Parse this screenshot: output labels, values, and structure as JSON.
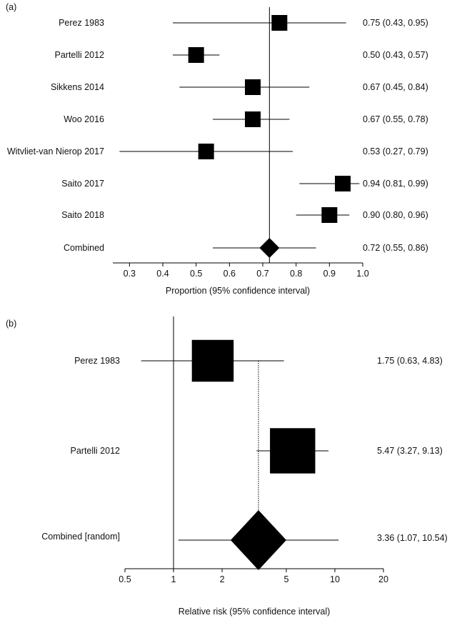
{
  "chart_data": [
    {
      "type": "forest",
      "panel_label": "(a)",
      "xlabel": "Proportion (95% confidence interval)",
      "xlim": [
        0.25,
        1.0
      ],
      "xticks": [
        "0.3",
        "0.4",
        "0.5",
        "0.6",
        "0.7",
        "0.8",
        "0.9",
        "1.0"
      ],
      "reference_line": 0.72,
      "studies": [
        {
          "name": "Perez 1983",
          "est": 0.75,
          "lo": 0.43,
          "hi": 0.95,
          "ci_text": "0.75 (0.43, 0.95)"
        },
        {
          "name": "Partelli 2012",
          "est": 0.5,
          "lo": 0.43,
          "hi": 0.57,
          "ci_text": "0.50 (0.43, 0.57)"
        },
        {
          "name": "Sikkens 2014",
          "est": 0.67,
          "lo": 0.45,
          "hi": 0.84,
          "ci_text": "0.67 (0.45, 0.84)"
        },
        {
          "name": "Woo 2016",
          "est": 0.67,
          "lo": 0.55,
          "hi": 0.78,
          "ci_text": "0.67 (0.55, 0.78)"
        },
        {
          "name": "Witvliet-van Nierop 2017",
          "est": 0.53,
          "lo": 0.27,
          "hi": 0.79,
          "ci_text": "0.53 (0.27, 0.79)"
        },
        {
          "name": "Saito 2017",
          "est": 0.94,
          "lo": 0.81,
          "hi": 0.99,
          "ci_text": "0.94 (0.81, 0.99)"
        },
        {
          "name": "Saito 2018",
          "est": 0.9,
          "lo": 0.8,
          "hi": 0.96,
          "ci_text": "0.90 (0.80, 0.96)"
        }
      ],
      "combined": {
        "name": "Combined",
        "est": 0.72,
        "lo": 0.55,
        "hi": 0.86,
        "ci_text": "0.72 (0.55, 0.86)"
      }
    },
    {
      "type": "forest",
      "panel_label": "(b)",
      "xlabel": "Relative risk (95% confidence interval)",
      "xscale": "log",
      "xlim": [
        0.5,
        20
      ],
      "xticks": [
        "0.5",
        "1",
        "2",
        "5",
        "10",
        "20"
      ],
      "null_line": 1,
      "reference_line": 3.36,
      "studies": [
        {
          "name": "Perez 1983",
          "est": 1.75,
          "lo": 0.63,
          "hi": 4.83,
          "ci_text": "1.75 (0.63, 4.83)",
          "weight": 0.46
        },
        {
          "name": "Partelli 2012",
          "est": 5.47,
          "lo": 3.27,
          "hi": 9.13,
          "ci_text": "5.47 (3.27, 9.13)",
          "weight": 0.54
        }
      ],
      "combined": {
        "name": "Combined [random]",
        "est": 3.36,
        "lo": 1.07,
        "hi": 10.54,
        "ci_text": "3.36 (1.07, 10.54)"
      }
    }
  ]
}
